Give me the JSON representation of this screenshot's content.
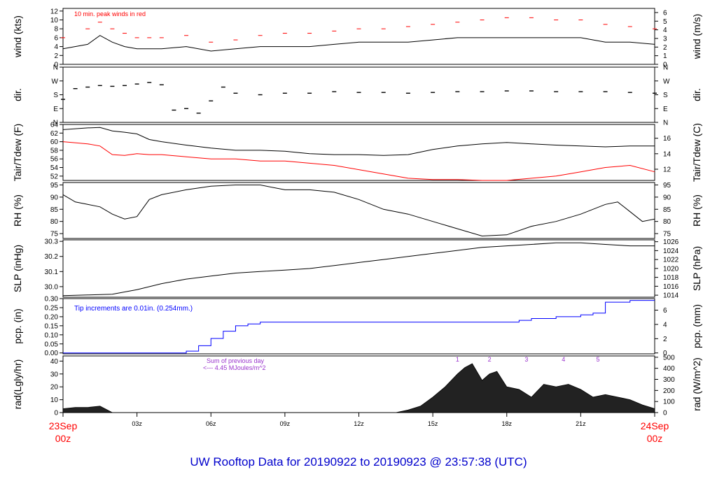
{
  "title": "UW Rooftop Data for 20190922  to  20190923 @ 23:57:38  (UTC)",
  "colors": {
    "title": "#0000cc",
    "red": "#ff0000",
    "blue": "#0000ff",
    "purple": "#9933cc",
    "black": "#000000"
  },
  "time_axis": {
    "ticks": [
      "03z",
      "06z",
      "09z",
      "12z",
      "15z",
      "18z",
      "21z"
    ],
    "start_label": [
      "23Sep",
      "00z"
    ],
    "end_label": [
      "24Sep",
      "00z"
    ]
  },
  "chart_data": [
    {
      "id": "wind",
      "type": "line",
      "ylabel_left": "wind (kts)",
      "ylabel_right": "wind (m/s)",
      "yticks_left": [
        "0",
        "2",
        "4",
        "6",
        "8",
        "10",
        "12"
      ],
      "yticks_right": [
        "0",
        "1",
        "2",
        "3",
        "4",
        "5",
        "6"
      ],
      "ylim": [
        0,
        12.6
      ],
      "annotation": "10 min. peak winds in red",
      "series": [
        {
          "color": "#000000",
          "style": "line",
          "x": [
            0,
            1,
            1.5,
            2,
            2.5,
            3,
            3.5,
            4,
            5,
            6,
            7,
            8,
            9,
            10,
            11,
            12,
            13,
            14,
            15,
            16,
            17,
            18,
            19,
            20,
            21,
            22,
            23,
            24
          ],
          "y": [
            3.5,
            4.5,
            6.5,
            5,
            4,
            3.5,
            3.5,
            3.5,
            4,
            3,
            3.5,
            4,
            4,
            4,
            4.5,
            5,
            5,
            5,
            5.5,
            6,
            6,
            6,
            6,
            6,
            6,
            5,
            5,
            4.5
          ]
        },
        {
          "color": "#ff0000",
          "style": "dashes",
          "x": [
            0,
            1,
            1.5,
            2,
            2.5,
            3,
            3.5,
            4,
            5,
            6,
            7,
            8,
            9,
            10,
            11,
            12,
            13,
            14,
            15,
            16,
            17,
            18,
            19,
            20,
            21,
            22,
            23,
            24
          ],
          "y": [
            6,
            8,
            9.5,
            8,
            7,
            6,
            6,
            6,
            6.5,
            5,
            5.5,
            6.5,
            7,
            7,
            7.5,
            8,
            8,
            8.5,
            9,
            9.5,
            10,
            10.5,
            10.5,
            10,
            10,
            9,
            8.5,
            8
          ]
        }
      ]
    },
    {
      "id": "dir",
      "type": "scatter",
      "ylabel_left": "dir.",
      "ylabel_right": "dir.",
      "yticks_left": [
        "N",
        "E",
        "S",
        "W",
        "N"
      ],
      "yticks_right": [
        "N",
        "E",
        "S",
        "W",
        "N"
      ],
      "ylim": [
        0,
        360
      ],
      "series": [
        {
          "color": "#000000",
          "x": [
            0,
            0.5,
            1,
            1.5,
            2,
            2.5,
            3,
            3.5,
            4,
            4.5,
            5,
            5.5,
            6,
            6.5,
            7,
            8,
            9,
            10,
            11,
            12,
            13,
            14,
            15,
            16,
            17,
            18,
            19,
            20,
            21,
            22,
            23,
            24
          ],
          "y": [
            150,
            220,
            230,
            240,
            235,
            240,
            250,
            260,
            245,
            80,
            90,
            60,
            140,
            230,
            190,
            180,
            190,
            190,
            200,
            195,
            195,
            190,
            195,
            200,
            200,
            205,
            205,
            200,
            200,
            200,
            195,
            190
          ]
        }
      ]
    },
    {
      "id": "temp",
      "type": "line",
      "ylabel_left": "Tair/Tdew (F)",
      "ylabel_right": "Tair/Tdew (C)",
      "yticks_left": [
        "52",
        "54",
        "56",
        "58",
        "60",
        "62",
        "64"
      ],
      "yticks_right": [
        "12",
        "14",
        "16"
      ],
      "ylim": [
        51,
        64
      ],
      "series": [
        {
          "name": "Tair",
          "color": "#000000",
          "x": [
            0,
            1,
            1.5,
            2,
            2.5,
            3,
            3.5,
            4,
            5,
            6,
            7,
            8,
            9,
            10,
            11,
            12,
            13,
            14,
            15,
            16,
            17,
            18,
            19,
            20,
            21,
            22,
            23,
            24
          ],
          "y": [
            62.8,
            63.2,
            63.3,
            62.5,
            62.2,
            61.8,
            60.5,
            60,
            59.2,
            58.5,
            58,
            58,
            57.8,
            57.2,
            57,
            57,
            56.8,
            57,
            58.2,
            59,
            59.5,
            59.8,
            59.5,
            59.2,
            59,
            58.8,
            59,
            59
          ]
        },
        {
          "name": "Tdew",
          "color": "#ff0000",
          "x": [
            0,
            1,
            1.5,
            2,
            2.5,
            3,
            3.5,
            4,
            5,
            6,
            7,
            8,
            9,
            10,
            11,
            12,
            13,
            14,
            15,
            16,
            17,
            18,
            19,
            20,
            21,
            22,
            23,
            24
          ],
          "y": [
            60,
            59.5,
            59,
            57,
            56.8,
            57.2,
            57,
            57,
            56.5,
            56,
            56,
            55.5,
            55.5,
            55,
            54.5,
            53.5,
            52.5,
            51.5,
            51.2,
            51.2,
            51,
            51,
            51.5,
            52,
            53,
            54,
            54.5,
            53
          ]
        }
      ]
    },
    {
      "id": "rh",
      "type": "line",
      "ylabel_left": "RH (%)",
      "ylabel_right": "RH (%)",
      "yticks_left": [
        "75",
        "80",
        "85",
        "90",
        "95"
      ],
      "yticks_right": [
        "75",
        "80",
        "85",
        "90",
        "95"
      ],
      "ylim": [
        73,
        96
      ],
      "series": [
        {
          "color": "#000000",
          "x": [
            0,
            0.5,
            1,
            1.5,
            2,
            2.5,
            3,
            3.5,
            4,
            5,
            6,
            7,
            8,
            9,
            10,
            11,
            12,
            13,
            14,
            15,
            16,
            17,
            18,
            19,
            20,
            21,
            22,
            22.5,
            23,
            23.5,
            24
          ],
          "y": [
            91,
            88,
            87,
            86,
            83,
            81,
            82,
            89,
            91,
            93,
            94.5,
            95,
            95,
            93,
            93,
            92,
            89,
            85,
            83,
            80,
            77,
            74,
            74.5,
            78,
            80,
            83,
            87,
            88,
            84,
            80,
            81
          ]
        }
      ]
    },
    {
      "id": "slp",
      "type": "line",
      "ylabel_left": "SLP (inHg)",
      "ylabel_right": "SLP (hPa)",
      "yticks_left": [
        "30.0",
        "30.1",
        "30.2",
        "30.3"
      ],
      "yticks_right": [
        "1014",
        "1016",
        "1018",
        "1020",
        "1022",
        "1024",
        "1026"
      ],
      "ylim": [
        29.93,
        30.31
      ],
      "series": [
        {
          "color": "#000000",
          "x": [
            0,
            1,
            2,
            3,
            4,
            5,
            6,
            7,
            8,
            9,
            10,
            11,
            12,
            13,
            14,
            15,
            16,
            17,
            18,
            19,
            20,
            21,
            22,
            23,
            24
          ],
          "y": [
            29.94,
            29.945,
            29.95,
            29.98,
            30.02,
            30.05,
            30.07,
            30.09,
            30.1,
            30.11,
            30.12,
            30.14,
            30.16,
            30.18,
            30.2,
            30.22,
            30.24,
            30.26,
            30.27,
            30.28,
            30.29,
            30.29,
            30.28,
            30.27,
            30.27
          ]
        }
      ]
    },
    {
      "id": "pcp",
      "type": "line",
      "ylabel_left": "pcp. (in)",
      "ylabel_right": "pcp. (mm)",
      "yticks_left": [
        "0.00",
        "0.05",
        "0.10",
        "0.15",
        "0.20",
        "0.25",
        "0.30"
      ],
      "yticks_right": [
        "0",
        "2",
        "4",
        "6"
      ],
      "ylim": [
        -0.005,
        0.3
      ],
      "annotation": "Tip increments are 0.01in. (0.254mm.)",
      "series": [
        {
          "color": "#0000ff",
          "style": "step",
          "x": [
            0,
            4.6,
            5,
            5.5,
            6,
            6.5,
            7,
            7.5,
            8,
            9,
            12,
            15,
            18,
            18.5,
            19,
            20,
            21,
            21.5,
            22,
            23,
            24
          ],
          "y": [
            0,
            0,
            0.01,
            0.04,
            0.08,
            0.12,
            0.15,
            0.16,
            0.17,
            0.17,
            0.17,
            0.17,
            0.17,
            0.18,
            0.19,
            0.2,
            0.21,
            0.22,
            0.28,
            0.29,
            0.29
          ]
        }
      ]
    },
    {
      "id": "rad",
      "type": "area",
      "ylabel_left": "rad(Lgly/hr)",
      "ylabel_right": "rad (W/m^2)",
      "yticks_left": [
        "0",
        "10",
        "20",
        "30",
        "40"
      ],
      "yticks_right": [
        "0",
        "100",
        "200",
        "300",
        "400",
        "500"
      ],
      "ylim": [
        0,
        44
      ],
      "annotation": [
        "Sum of previous day",
        "<--- 4.45 MJoules/m^2"
      ],
      "markers": [
        "1",
        "2",
        "3",
        "4",
        "5"
      ],
      "series": [
        {
          "color": "#000000",
          "x": [
            0,
            0.5,
            1,
            1.5,
            2,
            2.5,
            13.5,
            14,
            14.5,
            15,
            15.5,
            16,
            16.3,
            16.6,
            17,
            17.3,
            17.6,
            18,
            18.5,
            19,
            19.5,
            20,
            20.5,
            21,
            21.5,
            22,
            22.5,
            23,
            23.5,
            24
          ],
          "y": [
            3,
            4,
            4,
            5,
            0,
            0,
            0,
            2,
            5,
            12,
            20,
            30,
            35,
            38,
            25,
            30,
            32,
            20,
            18,
            12,
            22,
            20,
            22,
            18,
            12,
            14,
            12,
            10,
            6,
            3
          ]
        }
      ]
    }
  ]
}
